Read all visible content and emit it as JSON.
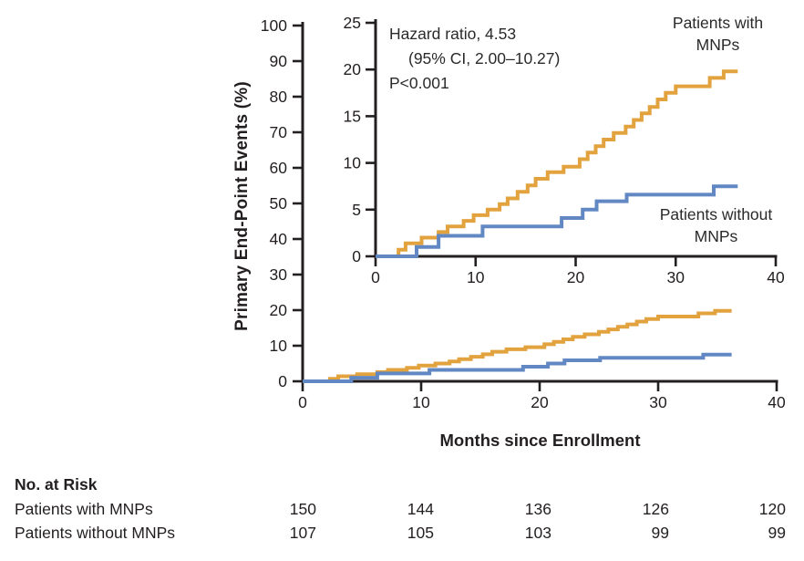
{
  "chart_data": {
    "type": "line",
    "subtype": "kaplan-meier-step",
    "title": "",
    "xlabel": "Months since Enrollment",
    "ylabel": "Primary End-Point Events (%)",
    "annotation": {
      "line1": "Hazard ratio, 4.53",
      "line2": "(95% CI, 2.00–10.27)",
      "line3": "P<0.001"
    },
    "axes": {
      "main": {
        "xlim": [
          0,
          40
        ],
        "ylim": [
          0,
          100
        ],
        "xticks": [
          0,
          10,
          20,
          30,
          40
        ],
        "yticks": [
          0,
          10,
          20,
          30,
          40,
          50,
          60,
          70,
          80,
          90,
          100
        ]
      },
      "inset": {
        "xlim": [
          0,
          40
        ],
        "ylim": [
          0,
          25
        ],
        "xticks": [
          0,
          10,
          20,
          30,
          40
        ],
        "yticks": [
          0,
          5,
          10,
          15,
          20,
          25
        ]
      }
    },
    "series": [
      {
        "name": "Patients with MNPs",
        "color": "#E2A23E",
        "end_month": 36.2,
        "steps": [
          [
            2.3,
            0.7
          ],
          [
            3.0,
            1.4
          ],
          [
            4.6,
            2.0
          ],
          [
            6.3,
            2.6
          ],
          [
            7.2,
            3.2
          ],
          [
            8.8,
            3.8
          ],
          [
            9.8,
            4.4
          ],
          [
            11.2,
            5.0
          ],
          [
            12.4,
            5.6
          ],
          [
            13.2,
            6.2
          ],
          [
            14.2,
            6.9
          ],
          [
            15.2,
            7.6
          ],
          [
            16.0,
            8.3
          ],
          [
            17.2,
            9.0
          ],
          [
            18.8,
            9.6
          ],
          [
            20.4,
            10.4
          ],
          [
            21.2,
            11.1
          ],
          [
            22.0,
            11.8
          ],
          [
            22.8,
            12.5
          ],
          [
            23.8,
            13.2
          ],
          [
            25.0,
            13.9
          ],
          [
            25.8,
            14.6
          ],
          [
            26.6,
            15.3
          ],
          [
            27.4,
            16.0
          ],
          [
            28.2,
            16.8
          ],
          [
            29.0,
            17.5
          ],
          [
            30.0,
            18.2
          ],
          [
            33.4,
            19.1
          ],
          [
            34.8,
            19.8
          ]
        ]
      },
      {
        "name": "Patients without MNPs",
        "color": "#6288C4",
        "end_month": 36.2,
        "steps": [
          [
            4.1,
            1.0
          ],
          [
            6.3,
            2.2
          ],
          [
            10.7,
            3.2
          ],
          [
            18.6,
            4.1
          ],
          [
            20.7,
            5.0
          ],
          [
            22.1,
            5.9
          ],
          [
            25.1,
            6.6
          ],
          [
            33.8,
            7.5
          ]
        ]
      }
    ],
    "legend_position": "on-chart"
  },
  "legend": {
    "with_mnps": {
      "line1": "Patients with",
      "line2": "MNPs"
    },
    "without_mnps": {
      "line1": "Patients without",
      "line2": "MNPs"
    }
  },
  "risk_table": {
    "title": "No. at Risk",
    "rows": [
      {
        "label": "Patients with MNPs",
        "values": [
          "150",
          "144",
          "136",
          "126",
          "120"
        ]
      },
      {
        "label": "Patients without MNPs",
        "values": [
          "107",
          "105",
          "103",
          "99",
          "99"
        ]
      }
    ]
  },
  "colors": {
    "with_mnps": "#E2A23E",
    "without_mnps": "#6288C4",
    "axis": "#231F20",
    "text": "#231F20"
  }
}
